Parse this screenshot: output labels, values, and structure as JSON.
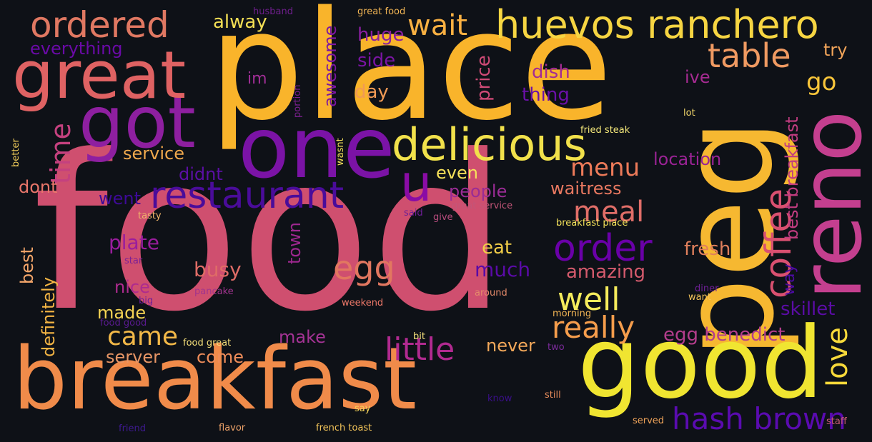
{
  "words": [
    {
      "text": "food",
      "color": "#cf4f6f"
    },
    {
      "text": "place",
      "color": "#f9b42b"
    },
    {
      "text": "breakfast",
      "color": "#f08b4a"
    },
    {
      "text": "peg",
      "color": "#f6b831"
    },
    {
      "text": "reno",
      "color": "#c43f8f"
    },
    {
      "text": "good",
      "color": "#f0e531"
    },
    {
      "text": "one",
      "color": "#7b13a6"
    },
    {
      "text": "got",
      "color": "#8e1fa0"
    },
    {
      "text": "great",
      "color": "#df6263"
    },
    {
      "text": "huevos ranchero",
      "color": "#f6d542"
    },
    {
      "text": "delicious",
      "color": "#f1e14b"
    },
    {
      "text": "restaurant",
      "color": "#4a0c9a"
    },
    {
      "text": "u",
      "color": "#8a0ca5"
    },
    {
      "text": "ordered",
      "color": "#e07862"
    },
    {
      "text": "table",
      "color": "#f09a62"
    },
    {
      "text": "coffee",
      "color": "#d95070"
    },
    {
      "text": "order",
      "color": "#6a00a8"
    },
    {
      "text": "hash brown",
      "color": "#5a0bb0"
    },
    {
      "text": "little",
      "color": "#b12a90"
    },
    {
      "text": "wait",
      "color": "#f9b042"
    },
    {
      "text": "egg",
      "color": "#e27760"
    },
    {
      "text": "well",
      "color": "#f5ec5c"
    },
    {
      "text": "really",
      "color": "#f59d4c"
    },
    {
      "text": "menu",
      "color": "#ec7a59"
    },
    {
      "text": "meal",
      "color": "#e06e68"
    },
    {
      "text": "love",
      "color": "#f7d93a"
    },
    {
      "text": "came",
      "color": "#f2b848"
    },
    {
      "text": "time",
      "color": "#c4417f"
    },
    {
      "text": "go",
      "color": "#f8c53a"
    },
    {
      "text": "egg benedict",
      "color": "#b43d8c"
    },
    {
      "text": "best breakfast",
      "color": "#c23c80"
    },
    {
      "text": "awesome",
      "color": "#7c16a2"
    },
    {
      "text": "amazing",
      "color": "#d35a6c"
    },
    {
      "text": "fresh",
      "color": "#e07f5c"
    },
    {
      "text": "plate",
      "color": "#9a1d9d"
    },
    {
      "text": "busy",
      "color": "#df6c66"
    },
    {
      "text": "skillet",
      "color": "#5b0ca6"
    },
    {
      "text": "much",
      "color": "#5a0ba6"
    },
    {
      "text": "eat",
      "color": "#f1cd48"
    },
    {
      "text": "huge",
      "color": "#8a1fa1"
    },
    {
      "text": "side",
      "color": "#7a15a3"
    },
    {
      "text": "day",
      "color": "#f09a55"
    },
    {
      "text": "dish",
      "color": "#a42c93"
    },
    {
      "text": "thing",
      "color": "#6b10a8"
    },
    {
      "text": "price",
      "color": "#cf4a76"
    },
    {
      "text": "everything",
      "color": "#6a0aa7"
    },
    {
      "text": "alway",
      "color": "#f3df55"
    },
    {
      "text": "service",
      "color": "#f0a94d"
    },
    {
      "text": "didnt",
      "color": "#5b0fa4"
    },
    {
      "text": "dont",
      "color": "#e8766a"
    },
    {
      "text": "went",
      "color": "#3e0a98"
    },
    {
      "text": "people",
      "color": "#9a2c95"
    },
    {
      "text": "even",
      "color": "#f7e25a"
    },
    {
      "text": "waitress",
      "color": "#e87860"
    },
    {
      "text": "location",
      "color": "#9a2395"
    },
    {
      "text": "ive",
      "color": "#a62b92"
    },
    {
      "text": "try",
      "color": "#f3a55a"
    },
    {
      "text": "nice",
      "color": "#ad2b8e"
    },
    {
      "text": "made",
      "color": "#f5d454"
    },
    {
      "text": "server",
      "color": "#e69565"
    },
    {
      "text": "come",
      "color": "#ef8d5a"
    },
    {
      "text": "make",
      "color": "#a43394"
    },
    {
      "text": "never",
      "color": "#f3a85a"
    },
    {
      "text": "best",
      "color": "#f5a66a"
    },
    {
      "text": "definitely",
      "color": "#f4b544"
    },
    {
      "text": "town",
      "color": "#9e278f"
    },
    {
      "text": "way",
      "color": "#4b0ba0"
    },
    {
      "text": "im",
      "color": "#a02e96"
    },
    {
      "text": "husband",
      "color": "#6e1f8c"
    },
    {
      "text": "great food",
      "color": "#f0b454"
    },
    {
      "text": "portion",
      "color": "#7c2090"
    },
    {
      "text": "wasnt",
      "color": "#f3e05a"
    },
    {
      "text": "better",
      "color": "#f3ce5a"
    },
    {
      "text": "lot",
      "color": "#f1d66a"
    },
    {
      "text": "fried steak",
      "color": "#f4e87a"
    },
    {
      "text": "tasty",
      "color": "#f0b66a"
    },
    {
      "text": "said",
      "color": "#6e1f96"
    },
    {
      "text": "give",
      "color": "#b84c7e"
    },
    {
      "text": "great service",
      "color": "#c45578"
    },
    {
      "text": "breakfast place",
      "color": "#f6e45a"
    },
    {
      "text": "star",
      "color": "#7c2096"
    },
    {
      "text": "pancake",
      "color": "#a0348e"
    },
    {
      "text": "big",
      "color": "#6e1f96"
    },
    {
      "text": "food good",
      "color": "#5a1a90"
    },
    {
      "text": "weekend",
      "color": "#f07a6a"
    },
    {
      "text": "around",
      "color": "#e58a6a"
    },
    {
      "text": "diner",
      "color": "#6e1f96"
    },
    {
      "text": "want",
      "color": "#f5c45a"
    },
    {
      "text": "morning",
      "color": "#f1b454"
    },
    {
      "text": "food great",
      "color": "#f6e07a"
    },
    {
      "text": "bit",
      "color": "#f3e07a"
    },
    {
      "text": "two",
      "color": "#7a2a9a"
    },
    {
      "text": "know",
      "color": "#3a0f8a"
    },
    {
      "text": "still",
      "color": "#e58a5a"
    },
    {
      "text": "say",
      "color": "#f6d35a"
    },
    {
      "text": "staff",
      "color": "#c85a76"
    },
    {
      "text": "friend",
      "color": "#3e1a90"
    },
    {
      "text": "flavor",
      "color": "#f0a46a"
    },
    {
      "text": "french toast",
      "color": "#f5c65a"
    },
    {
      "text": "served",
      "color": "#f0a45a"
    }
  ]
}
